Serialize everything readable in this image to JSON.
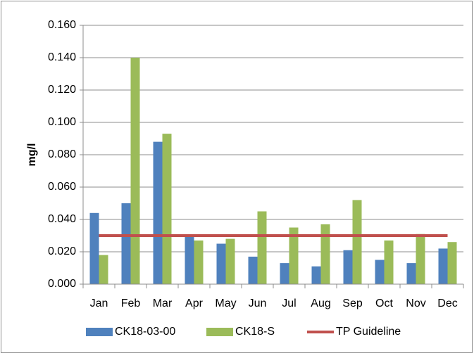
{
  "chart_data": {
    "type": "bar",
    "y_label": "mg/l",
    "categories": [
      "Jan",
      "Feb",
      "Mar",
      "Apr",
      "May",
      "Jun",
      "Jul",
      "Aug",
      "Sep",
      "Oct",
      "Nov",
      "Dec"
    ],
    "series": [
      {
        "name": "CK18-03-00",
        "color": "#4f81bd",
        "values": [
          0.044,
          0.05,
          0.088,
          0.03,
          0.025,
          0.017,
          0.013,
          0.011,
          0.021,
          0.015,
          0.013,
          0.022
        ]
      },
      {
        "name": "CK18-S",
        "color": "#9bbb59",
        "values": [
          0.018,
          0.14,
          0.093,
          0.027,
          0.028,
          0.045,
          0.035,
          0.037,
          0.052,
          0.027,
          0.031,
          0.026
        ]
      },
      {
        "name": "TP Guideline",
        "type": "line",
        "color": "#c0504d",
        "values": [
          0.03,
          0.03,
          0.03,
          0.03,
          0.03,
          0.03,
          0.03,
          0.03,
          0.03,
          0.03,
          0.03,
          0.03
        ]
      }
    ],
    "ylim": [
      0,
      0.16
    ],
    "yticks": [
      {
        "value": 0,
        "label": "0.000"
      },
      {
        "value": 0.02,
        "label": "0.020"
      },
      {
        "value": 0.04,
        "label": "0.040"
      },
      {
        "value": 0.06,
        "label": "0.060"
      },
      {
        "value": 0.08,
        "label": "0.080"
      },
      {
        "value": 0.1,
        "label": "0.100"
      },
      {
        "value": 0.12,
        "label": "0.120"
      },
      {
        "value": 0.14,
        "label": "0.140"
      },
      {
        "value": 0.16,
        "label": "0.160"
      }
    ],
    "grid": true,
    "legend": "bottom"
  }
}
